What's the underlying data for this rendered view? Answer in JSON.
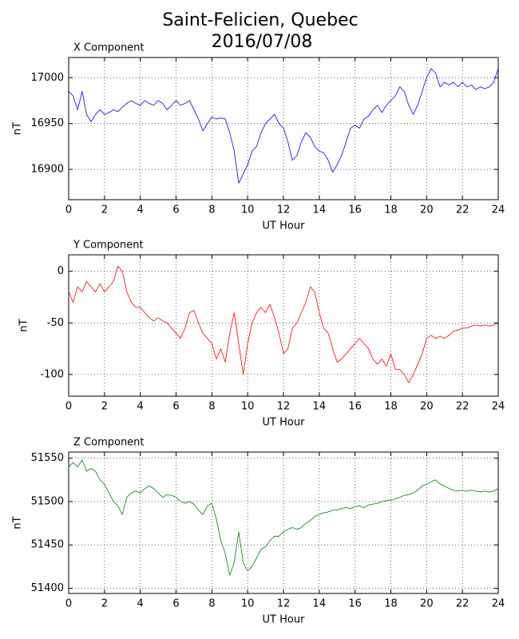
{
  "title": "Saint-Felicien, Quebec",
  "subtitle": "2016/07/08",
  "chart_data": [
    {
      "type": "line",
      "title": "X Component",
      "xlabel": "UT Hour",
      "ylabel": "nT",
      "color": "#0000ff",
      "grid": true,
      "xlim": [
        0,
        24
      ],
      "xticks": [
        0,
        2,
        4,
        6,
        8,
        10,
        12,
        14,
        16,
        18,
        20,
        22,
        24
      ],
      "ylim": [
        16867,
        17022
      ],
      "yticks": [
        16900,
        16950,
        17000
      ],
      "x": [
        0,
        0.25,
        0.5,
        0.75,
        1,
        1.25,
        1.5,
        1.75,
        2,
        2.25,
        2.5,
        2.75,
        3,
        3.25,
        3.5,
        3.75,
        4,
        4.25,
        4.5,
        4.75,
        5,
        5.25,
        5.5,
        5.75,
        6,
        6.25,
        6.5,
        6.75,
        7,
        7.25,
        7.5,
        7.75,
        8,
        8.25,
        8.5,
        8.75,
        9,
        9.25,
        9.5,
        9.75,
        10,
        10.25,
        10.5,
        10.75,
        11,
        11.25,
        11.5,
        11.75,
        12,
        12.25,
        12.5,
        12.75,
        13,
        13.25,
        13.5,
        13.75,
        14,
        14.25,
        14.5,
        14.75,
        15,
        15.25,
        15.5,
        15.75,
        16,
        16.25,
        16.5,
        16.75,
        17,
        17.25,
        17.5,
        17.75,
        18,
        18.25,
        18.5,
        18.75,
        19,
        19.25,
        19.5,
        19.75,
        20,
        20.25,
        20.5,
        20.75,
        21,
        21.25,
        21.5,
        21.75,
        22,
        22.25,
        22.5,
        22.75,
        23,
        23.25,
        23.5,
        23.75,
        24
      ],
      "values": [
        16985,
        16980,
        16965,
        16985,
        16960,
        16952,
        16960,
        16965,
        16960,
        16962,
        16965,
        16963,
        16968,
        16972,
        16975,
        16972,
        16970,
        16975,
        16972,
        16970,
        16975,
        16972,
        16965,
        16970,
        16975,
        16970,
        16972,
        16975,
        16965,
        16955,
        16942,
        16950,
        16957,
        16955,
        16956,
        16955,
        16940,
        16920,
        16885,
        16895,
        16905,
        16920,
        16925,
        16940,
        16950,
        16955,
        16960,
        16950,
        16945,
        16930,
        16910,
        16915,
        16930,
        16940,
        16935,
        16925,
        16920,
        16918,
        16910,
        16897,
        16905,
        16915,
        16930,
        16945,
        16948,
        16945,
        16955,
        16958,
        16965,
        16970,
        16962,
        16970,
        16975,
        16980,
        16990,
        16985,
        16970,
        16960,
        16970,
        16985,
        17000,
        17010,
        17005,
        16990,
        16995,
        16992,
        16995,
        16990,
        16995,
        16990,
        16992,
        16987,
        16990,
        16988,
        16990,
        16995,
        17010
      ]
    },
    {
      "type": "line",
      "title": "Y Component",
      "xlabel": "UT Hour",
      "ylabel": "nT",
      "color": "#ff0000",
      "grid": true,
      "xlim": [
        0,
        24
      ],
      "xticks": [
        0,
        2,
        4,
        6,
        8,
        10,
        12,
        14,
        16,
        18,
        20,
        22,
        24
      ],
      "ylim": [
        -121,
        16
      ],
      "yticks": [
        -100,
        -50,
        0
      ],
      "x": [
        0,
        0.25,
        0.5,
        0.75,
        1,
        1.25,
        1.5,
        1.75,
        2,
        2.25,
        2.5,
        2.75,
        3,
        3.25,
        3.5,
        3.75,
        4,
        4.25,
        4.5,
        4.75,
        5,
        5.25,
        5.5,
        5.75,
        6,
        6.25,
        6.5,
        6.75,
        7,
        7.25,
        7.5,
        7.75,
        8,
        8.25,
        8.5,
        8.75,
        9,
        9.25,
        9.5,
        9.75,
        10,
        10.25,
        10.5,
        10.75,
        11,
        11.25,
        11.5,
        11.75,
        12,
        12.25,
        12.5,
        12.75,
        13,
        13.25,
        13.5,
        13.75,
        14,
        14.25,
        14.5,
        14.75,
        15,
        15.25,
        15.5,
        15.75,
        16,
        16.25,
        16.5,
        16.75,
        17,
        17.25,
        17.5,
        17.75,
        18,
        18.25,
        18.5,
        18.75,
        19,
        19.25,
        19.5,
        19.75,
        20,
        20.25,
        20.5,
        20.75,
        21,
        21.25,
        21.5,
        21.75,
        22,
        22.25,
        22.5,
        22.75,
        23,
        23.25,
        23.5,
        23.75,
        24
      ],
      "values": [
        -20,
        -30,
        -15,
        -20,
        -10,
        -15,
        -20,
        -12,
        -20,
        -15,
        -10,
        5,
        0,
        -20,
        -30,
        -35,
        -35,
        -40,
        -45,
        -48,
        -45,
        -48,
        -50,
        -55,
        -60,
        -65,
        -55,
        -40,
        -38,
        -50,
        -60,
        -65,
        -70,
        -85,
        -75,
        -88,
        -60,
        -40,
        -70,
        -100,
        -70,
        -50,
        -40,
        -35,
        -40,
        -32,
        -45,
        -60,
        -80,
        -75,
        -55,
        -50,
        -40,
        -30,
        -15,
        -20,
        -40,
        -55,
        -60,
        -75,
        -88,
        -85,
        -80,
        -75,
        -70,
        -65,
        -70,
        -75,
        -85,
        -90,
        -85,
        -92,
        -80,
        -95,
        -95,
        -100,
        -108,
        -100,
        -90,
        -80,
        -65,
        -62,
        -65,
        -63,
        -65,
        -62,
        -58,
        -57,
        -55,
        -55,
        -53,
        -52,
        -53,
        -52,
        -53,
        -52,
        -50
      ]
    },
    {
      "type": "line",
      "title": "Z Component",
      "xlabel": "UT Hour",
      "ylabel": "nT",
      "color": "#008000",
      "grid": true,
      "xlim": [
        0,
        24
      ],
      "xticks": [
        0,
        2,
        4,
        6,
        8,
        10,
        12,
        14,
        16,
        18,
        20,
        22,
        24
      ],
      "ylim": [
        51394,
        51557
      ],
      "yticks": [
        51400,
        51450,
        51500,
        51550
      ],
      "x": [
        0,
        0.25,
        0.5,
        0.75,
        1,
        1.25,
        1.5,
        1.75,
        2,
        2.25,
        2.5,
        2.75,
        3,
        3.25,
        3.5,
        3.75,
        4,
        4.25,
        4.5,
        4.75,
        5,
        5.25,
        5.5,
        5.75,
        6,
        6.25,
        6.5,
        6.75,
        7,
        7.25,
        7.5,
        7.75,
        8,
        8.25,
        8.5,
        8.75,
        9,
        9.25,
        9.5,
        9.75,
        10,
        10.25,
        10.5,
        10.75,
        11,
        11.25,
        11.5,
        11.75,
        12,
        12.25,
        12.5,
        12.75,
        13,
        13.25,
        13.5,
        13.75,
        14,
        14.25,
        14.5,
        14.75,
        15,
        15.25,
        15.5,
        15.75,
        16,
        16.25,
        16.5,
        16.75,
        17,
        17.25,
        17.5,
        17.75,
        18,
        18.25,
        18.5,
        18.75,
        19,
        19.25,
        19.5,
        19.75,
        20,
        20.25,
        20.5,
        20.75,
        21,
        21.25,
        21.5,
        21.75,
        22,
        22.25,
        22.5,
        22.75,
        23,
        23.25,
        23.5,
        23.75,
        24
      ],
      "values": [
        51540,
        51545,
        51540,
        51548,
        51535,
        51538,
        51535,
        51525,
        51520,
        51510,
        51500,
        51495,
        51485,
        51505,
        51510,
        51512,
        51510,
        51515,
        51518,
        51515,
        51510,
        51505,
        51508,
        51507,
        51505,
        51500,
        51498,
        51500,
        51497,
        51490,
        51485,
        51495,
        51498,
        51480,
        51455,
        51440,
        51415,
        51430,
        51465,
        51430,
        51420,
        51425,
        51435,
        51445,
        51448,
        51455,
        51460,
        51460,
        51465,
        51468,
        51470,
        51468,
        51470,
        51475,
        51478,
        51483,
        51485,
        51487,
        51488,
        51490,
        51490,
        51492,
        51493,
        51492,
        51494,
        51495,
        51493,
        51496,
        51497,
        51498,
        51500,
        51501,
        51502,
        51503,
        51505,
        51507,
        51508,
        51510,
        51513,
        51518,
        51520,
        51523,
        51525,
        51520,
        51518,
        51515,
        51513,
        51512,
        51513,
        51512,
        51513,
        51512,
        51511,
        51512,
        51511,
        51512,
        51515
      ]
    }
  ]
}
